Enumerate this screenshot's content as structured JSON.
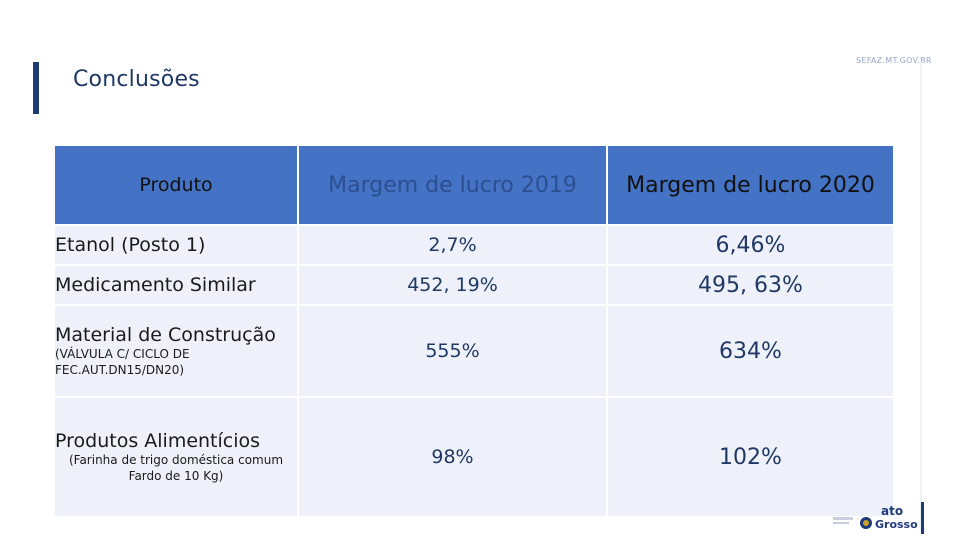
{
  "header": {
    "title": "Conclusões",
    "site": "SEFAZ.MT.GOV.BR"
  },
  "table": {
    "columns": [
      "Produto",
      "Margem de lucro 2019",
      "Margem de lucro 2020"
    ],
    "rows": [
      {
        "product": "Etanol (Posto 1)",
        "detail": "",
        "m2019": "2,7%",
        "m2020": "6,46%"
      },
      {
        "product": "Medicamento Similar",
        "detail": "",
        "m2019": "452, 19%",
        "m2020": "495, 63%"
      },
      {
        "product": "Material de Construção",
        "detail": "(VÁLVULA C/ CICLO DE FEC.AUT.DN15/DN20)",
        "m2019": "555%",
        "m2020": "634%"
      },
      {
        "product": "Produtos Alimentícios",
        "detail": "(Farinha de trigo doméstica comum Fardo de 10 Kg)",
        "m2019": "98%",
        "m2020": "102%"
      }
    ]
  },
  "logo": {
    "text_top": "ato",
    "text_bottom": "Grosso",
    "colors": {
      "navy": "#1f3a7a",
      "gold": "#c9a227"
    }
  },
  "colors": {
    "header_fill": "#4472c4",
    "row_fill": "#eef1f9",
    "value_text": "#1f3864",
    "accent": "#1e3a72"
  }
}
